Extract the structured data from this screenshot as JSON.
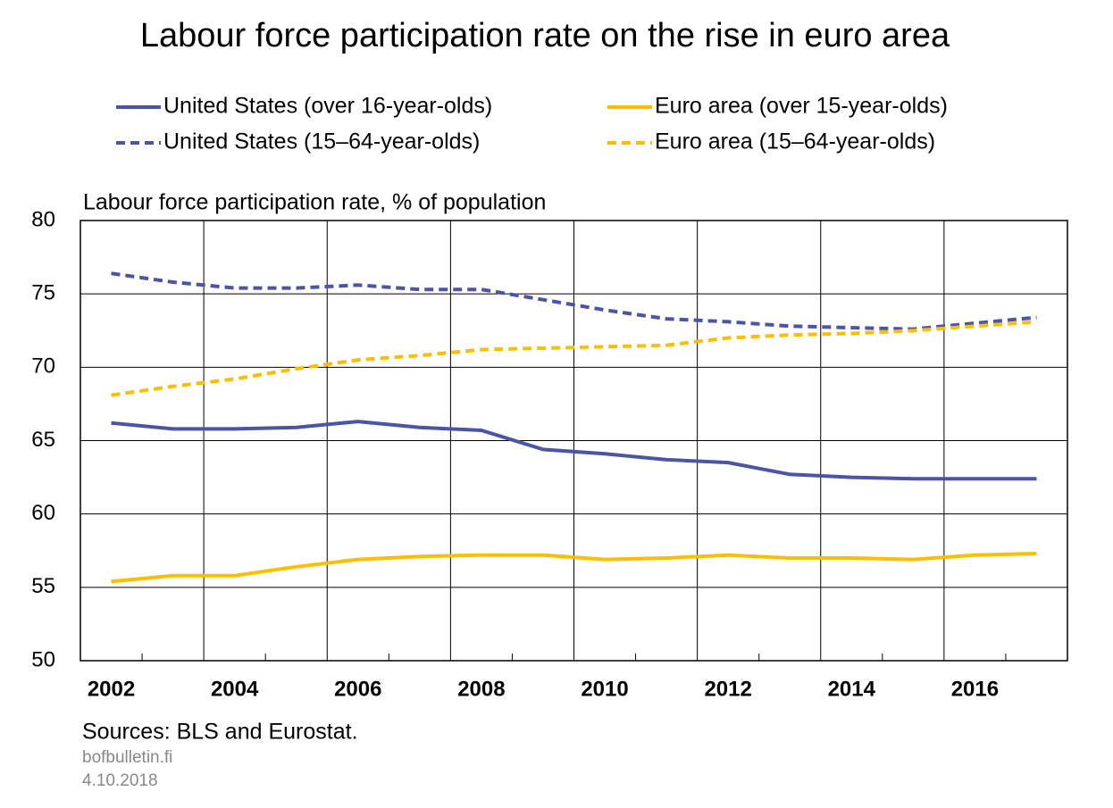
{
  "chart_data": {
    "type": "line",
    "title": "Labour force participation rate on the rise in euro area",
    "y_label": "Labour force participation rate, % of population",
    "source": "Sources: BLS and Eurostat.",
    "footer": [
      "bofbulletin.fi",
      "4.10.2018"
    ],
    "categories": [
      "2002",
      null,
      "2004",
      null,
      "2006",
      null,
      "2008",
      null,
      "2010",
      null,
      "2012",
      null,
      "2014",
      null,
      "2016",
      null
    ],
    "series": [
      {
        "name": "United States (over 16-year-olds)",
        "color": "#4b55a3",
        "line_style": "solid",
        "values": [
          66.2,
          65.8,
          65.8,
          65.9,
          66.3,
          65.9,
          65.7,
          64.4,
          64.1,
          63.7,
          63.5,
          62.7,
          62.5,
          62.4,
          62.4,
          62.4
        ]
      },
      {
        "name": "Euro area (over 15-year-olds)",
        "color": "#fcbf00",
        "line_style": "solid",
        "values": [
          55.4,
          55.8,
          55.8,
          56.4,
          56.9,
          57.1,
          57.2,
          57.2,
          56.9,
          57.0,
          57.2,
          57.0,
          57.0,
          56.9,
          57.2,
          57.3
        ]
      },
      {
        "name": "United States (15–64-year-olds)",
        "color": "#4b55a3",
        "line_style": "dashed",
        "values": [
          76.4,
          75.8,
          75.4,
          75.4,
          75.6,
          75.3,
          75.3,
          74.6,
          73.9,
          73.3,
          73.1,
          72.8,
          72.7,
          72.6,
          73.0,
          73.4
        ]
      },
      {
        "name": "Euro area (15–64-year-olds)",
        "color": "#fcbf00",
        "line_style": "dashed",
        "values": [
          68.1,
          68.7,
          69.2,
          69.9,
          70.5,
          70.8,
          71.2,
          71.3,
          71.4,
          71.5,
          72.0,
          72.2,
          72.3,
          72.5,
          72.8,
          73.1
        ]
      }
    ],
    "ylim": [
      50,
      80
    ],
    "yticks": [
      50,
      55,
      60,
      65,
      70,
      75,
      80
    ],
    "grid": true
  }
}
